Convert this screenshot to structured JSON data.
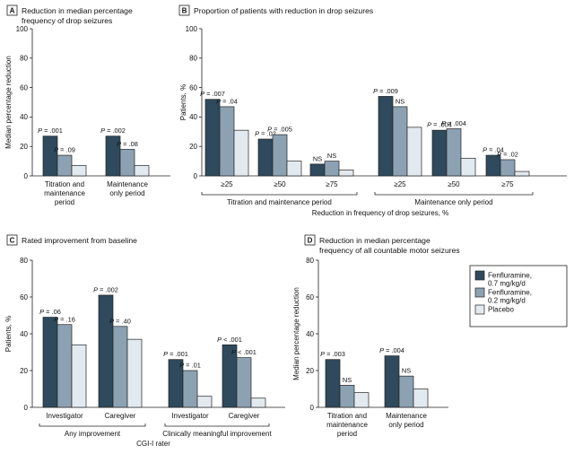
{
  "colors": {
    "dark": "#2e4a5c",
    "mid": "#8ca2b2",
    "light": "#e3eaef",
    "stroke": "#222222"
  },
  "legend": {
    "items": [
      {
        "line1": "Fenfluramine,",
        "line2": "0.7 mg/kg/d",
        "color": "#2e4a5c"
      },
      {
        "line1": "Fenfluramine,",
        "line2": "0.2 mg/kg/d",
        "color": "#8ca2b2"
      },
      {
        "line1": "Placebo",
        "line2": "",
        "color": "#e3eaef"
      }
    ]
  },
  "chart_data": [
    {
      "id": "A",
      "type": "bar",
      "panel_letter": "A",
      "title_lines": [
        "Reduction in median percentage",
        "frequency of drop seizures"
      ],
      "ylabel": "Median percentage reduction",
      "ylim": [
        0,
        100
      ],
      "yticks": [
        0,
        20,
        40,
        60,
        80,
        100
      ],
      "series": [
        {
          "name": "Fenfluramine, 0.7 mg/kg/d"
        },
        {
          "name": "Fenfluramine, 0.2 mg/kg/d"
        },
        {
          "name": "Placebo"
        }
      ],
      "groups": [
        {
          "label_lines": [
            "Titration and",
            "maintenance",
            "period"
          ],
          "values": [
            27,
            14,
            7
          ],
          "annotations": [
            "P = .001",
            "P = .09",
            ""
          ]
        },
        {
          "label_lines": [
            "Maintenance",
            "only period"
          ],
          "values": [
            27,
            18,
            7
          ],
          "annotations": [
            "P = .002",
            "P = .08",
            ""
          ]
        }
      ]
    },
    {
      "id": "B",
      "type": "bar",
      "panel_letter": "B",
      "title_lines": [
        "Proportion of patients with reduction in drop seizures"
      ],
      "ylabel": "Patients, %",
      "ylim": [
        0,
        100
      ],
      "yticks": [
        0,
        20,
        40,
        60,
        80,
        100
      ],
      "series": [
        {
          "name": "Fenfluramine, 0.7 mg/kg/d"
        },
        {
          "name": "Fenfluramine, 0.2 mg/kg/d"
        },
        {
          "name": "Placebo"
        }
      ],
      "groups": [
        {
          "label_lines": [
            "≥25"
          ],
          "values": [
            52,
            47,
            31
          ],
          "annotations": [
            "P = .007",
            "P = .04",
            ""
          ]
        },
        {
          "label_lines": [
            "≥50"
          ],
          "values": [
            25,
            28,
            10
          ],
          "annotations": [
            "P = .02",
            "P = .005",
            ""
          ]
        },
        {
          "label_lines": [
            "≥75"
          ],
          "values": [
            8,
            10,
            4
          ],
          "annotations": [
            "NS",
            "NS",
            ""
          ]
        },
        {
          "label_lines": [
            "≥25"
          ],
          "values": [
            54,
            47,
            33
          ],
          "annotations": [
            "P = .009",
            "NS",
            ""
          ]
        },
        {
          "label_lines": [
            "≥50"
          ],
          "values": [
            31,
            32,
            12
          ],
          "annotations": [
            "P = .004",
            "P = .004",
            ""
          ]
        },
        {
          "label_lines": [
            "≥75"
          ],
          "values": [
            14,
            11,
            3
          ],
          "annotations": [
            "P = .04",
            "P = .02",
            ""
          ]
        }
      ],
      "brackets": [
        {
          "label": "Titration and maintenance period",
          "groups": [
            0,
            2
          ]
        },
        {
          "label": "Maintenance only period",
          "groups": [
            3,
            5
          ]
        }
      ],
      "xlabel": "Reduction in frequency of drop seizures, %"
    },
    {
      "id": "C",
      "type": "bar",
      "panel_letter": "C",
      "title_lines": [
        "Rated improvement from baseline"
      ],
      "ylabel": "Patients, %",
      "ylim": [
        0,
        80
      ],
      "yticks": [
        0,
        20,
        40,
        60,
        80
      ],
      "series": [
        {
          "name": "Fenfluramine, 0.7 mg/kg/d"
        },
        {
          "name": "Fenfluramine, 0.2 mg/kg/d"
        },
        {
          "name": "Placebo"
        }
      ],
      "groups": [
        {
          "label_lines": [
            "Investigator"
          ],
          "values": [
            49,
            45,
            34
          ],
          "annotations": [
            "P = .06",
            "P = .16",
            ""
          ]
        },
        {
          "label_lines": [
            "Caregiver"
          ],
          "values": [
            61,
            44,
            37
          ],
          "annotations": [
            "P = .002",
            "P = .40",
            ""
          ]
        },
        {
          "label_lines": [
            "Investigator"
          ],
          "values": [
            26,
            20,
            6
          ],
          "annotations": [
            "P = .001",
            "P = .01",
            ""
          ]
        },
        {
          "label_lines": [
            "Caregiver"
          ],
          "values": [
            34,
            27,
            5
          ],
          "annotations": [
            "P < .001",
            "P < .001",
            ""
          ]
        }
      ],
      "brackets": [
        {
          "label": "Any improvement",
          "groups": [
            0,
            1
          ]
        },
        {
          "label": "Clinically meaningful improvement",
          "groups": [
            2,
            3
          ]
        }
      ],
      "xlabel": "CGI-I rater"
    },
    {
      "id": "D",
      "type": "bar",
      "panel_letter": "D",
      "title_lines": [
        "Reduction in median percentage",
        "frequency of all countable motor seizures"
      ],
      "ylabel": "Median percentage reduction",
      "ylim": [
        0,
        80
      ],
      "yticks": [
        0,
        20,
        40,
        60,
        80
      ],
      "series": [
        {
          "name": "Fenfluramine, 0.7 mg/kg/d"
        },
        {
          "name": "Fenfluramine, 0.2 mg/kg/d"
        },
        {
          "name": "Placebo"
        }
      ],
      "groups": [
        {
          "label_lines": [
            "Titration and",
            "maintenance",
            "period"
          ],
          "values": [
            26,
            12,
            8
          ],
          "annotations": [
            "P = .003",
            "NS",
            ""
          ]
        },
        {
          "label_lines": [
            "Maintenance",
            "only period"
          ],
          "values": [
            28,
            17,
            10
          ],
          "annotations": [
            "P = .004",
            "NS",
            ""
          ]
        }
      ]
    }
  ]
}
